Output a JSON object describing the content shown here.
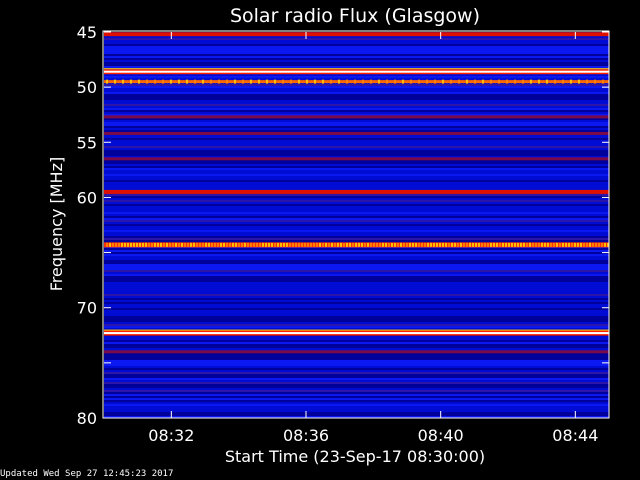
{
  "chart_data": {
    "type": "heatmap",
    "title": "Solar radio Flux (Glasgow)",
    "xlabel": "Start Time (23-Sep-17 08:30:00)",
    "ylabel": "Frequency [MHz]",
    "x_unit": "UT time",
    "x_range": [
      "08:30:00",
      "08:45:00"
    ],
    "x_ticks": [
      "08:32",
      "08:36",
      "08:40",
      "08:44"
    ],
    "x_tick_minutes": [
      32,
      36,
      40,
      44
    ],
    "ylim": [
      45,
      80
    ],
    "y_inverted": true,
    "y_ticks": [
      45,
      50,
      55,
      60,
      65,
      70,
      75,
      80
    ],
    "y_tick_labels": [
      "45",
      "50",
      "55",
      "60",
      "",
      "70",
      "",
      "80"
    ],
    "grid": false,
    "colormap": "blue-red-yellow-white",
    "intensity_bands": [
      {
        "freq_mhz": 45.2,
        "level": "high"
      },
      {
        "freq_mhz": 48.6,
        "level": "saturated"
      },
      {
        "freq_mhz": 49.5,
        "level": "bursty"
      },
      {
        "freq_mhz": 52.7,
        "level": "medium"
      },
      {
        "freq_mhz": 54.2,
        "level": "medium"
      },
      {
        "freq_mhz": 56.5,
        "level": "medium"
      },
      {
        "freq_mhz": 59.5,
        "level": "high"
      },
      {
        "freq_mhz": 64.3,
        "level": "bursty-high"
      },
      {
        "freq_mhz": 72.3,
        "level": "saturated"
      },
      {
        "freq_mhz": 74.0,
        "level": "medium"
      }
    ]
  },
  "footer": {
    "text": "Updated Wed Sep 27 12:45:23 2017"
  },
  "colors": {
    "background": "#000000",
    "low": "#0000c8",
    "medium": "#800040",
    "high": "#ff1000",
    "saturated": "#ffffff"
  }
}
